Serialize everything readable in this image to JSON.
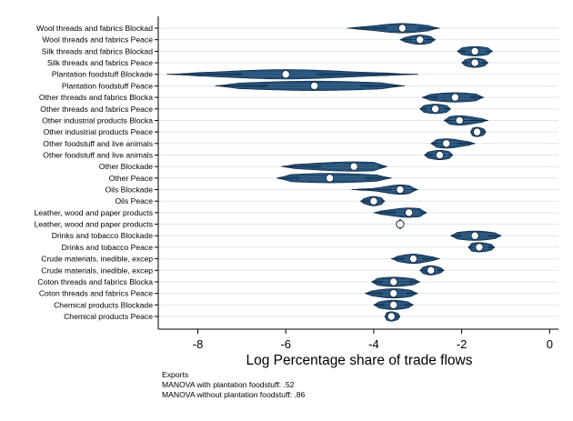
{
  "chart_data": {
    "type": "violin",
    "xlabel": "Log Percentage share of trade flows",
    "ylabel": "",
    "xlim": [
      -8.9,
      0.2
    ],
    "xticks": [
      -8,
      -6,
      -4,
      -2,
      0
    ],
    "xtick_labels": [
      "-8",
      "-6",
      "-4",
      "-2",
      "0"
    ],
    "grid": "horizontal",
    "categories": [
      "Wool threads and fabrics Blockad",
      "Wool threads and fabrics Peace",
      "Silk threads and fabrics Blockad",
      "Silk threads and fabrics Peace",
      "Plantation foodstuff Blockade",
      "Plantation foodstuff Peace",
      "Other threads and fabrics Blocka",
      "Other threads and fabrics Peace",
      "Other industrial products Blocka",
      "Other industrial products Peace",
      "Other foodstuff and live animals",
      "Other foodstuff and live animals",
      "Other Blockade",
      "Other Peace",
      "Oils Blockade",
      "Oils Peace",
      "Leather, wood and paper products",
      "Leather, wood and paper products",
      "Drinks and tobacco Blockade",
      "Drinks and tobacco Peace",
      "Crude materials, inedible, excep",
      "Crude materials, inedible, excep",
      "Coton threads and fabrics Blocka",
      "Coton threads and fabrics Peace",
      "Chemical products Blockade",
      "Chemical products Peace"
    ],
    "violins": [
      {
        "median": -3.35,
        "q1": -3.7,
        "q3": -3.0,
        "min": -4.6,
        "max": -2.5
      },
      {
        "median": -2.95,
        "q1": -3.15,
        "q3": -2.8,
        "min": -3.4,
        "max": -2.6
      },
      {
        "median": -1.7,
        "q1": -1.9,
        "q3": -1.45,
        "min": -2.1,
        "max": -1.3
      },
      {
        "median": -1.7,
        "q1": -1.85,
        "q3": -1.55,
        "min": -2.0,
        "max": -1.4
      },
      {
        "median": -6.0,
        "q1": -7.0,
        "q3": -5.3,
        "min": -8.7,
        "max": -3.0
      },
      {
        "median": -5.35,
        "q1": -6.4,
        "q3": -4.3,
        "min": -7.6,
        "max": -3.3
      },
      {
        "median": -2.15,
        "q1": -2.55,
        "q3": -1.8,
        "min": -2.9,
        "max": -1.5
      },
      {
        "median": -2.6,
        "q1": -2.8,
        "q3": -2.4,
        "min": -2.95,
        "max": -2.25
      },
      {
        "median": -2.05,
        "q1": -2.25,
        "q3": -1.8,
        "min": -2.4,
        "max": -1.4
      },
      {
        "median": -1.65,
        "q1": -1.75,
        "q3": -1.55,
        "min": -1.8,
        "max": -1.45
      },
      {
        "median": -2.35,
        "q1": -2.55,
        "q3": -2.1,
        "min": -2.7,
        "max": -1.7
      },
      {
        "median": -2.5,
        "q1": -2.65,
        "q3": -2.3,
        "min": -2.85,
        "max": -2.2
      },
      {
        "median": -4.45,
        "q1": -5.2,
        "q3": -3.9,
        "min": -6.1,
        "max": -3.7
      },
      {
        "median": -5.0,
        "q1": -5.7,
        "q3": -4.2,
        "min": -6.2,
        "max": -3.6
      },
      {
        "median": -3.4,
        "q1": -3.6,
        "q3": -3.15,
        "min": -4.5,
        "max": -3.0
      },
      {
        "median": -4.0,
        "q1": -4.1,
        "q3": -3.85,
        "min": -4.3,
        "max": -3.75
      },
      {
        "median": -3.2,
        "q1": -3.5,
        "q3": -2.95,
        "min": -4.0,
        "max": -2.8
      },
      {
        "median": -3.4,
        "q1": -3.42,
        "q3": -3.38,
        "min": -3.45,
        "max": -3.35
      },
      {
        "median": -1.7,
        "q1": -2.0,
        "q3": -1.4,
        "min": -2.25,
        "max": -1.1
      },
      {
        "median": -1.6,
        "q1": -1.75,
        "q3": -1.4,
        "min": -1.85,
        "max": -1.25
      },
      {
        "median": -3.1,
        "q1": -3.3,
        "q3": -2.9,
        "min": -3.6,
        "max": -2.5
      },
      {
        "median": -2.7,
        "q1": -2.8,
        "q3": -2.55,
        "min": -2.95,
        "max": -2.4
      },
      {
        "median": -3.55,
        "q1": -3.8,
        "q3": -3.2,
        "min": -4.05,
        "max": -2.95
      },
      {
        "median": -3.55,
        "q1": -3.8,
        "q3": -3.25,
        "min": -4.2,
        "max": -3.0
      },
      {
        "median": -3.55,
        "q1": -3.75,
        "q3": -3.3,
        "min": -4.0,
        "max": -3.1
      },
      {
        "median": -3.6,
        "q1": -3.7,
        "q3": -3.5,
        "min": -3.75,
        "max": -3.4
      }
    ],
    "colors": {
      "fill": "#1a476f",
      "outline": "#0a2440",
      "median_marker": "#ffffff",
      "grid": "#dfe7ee"
    }
  },
  "note": {
    "title": "Exports",
    "lines": [
      "MANOVA with plantation foodstuff: .52",
      "MANOVA without plantation foodstuff: .86"
    ]
  }
}
